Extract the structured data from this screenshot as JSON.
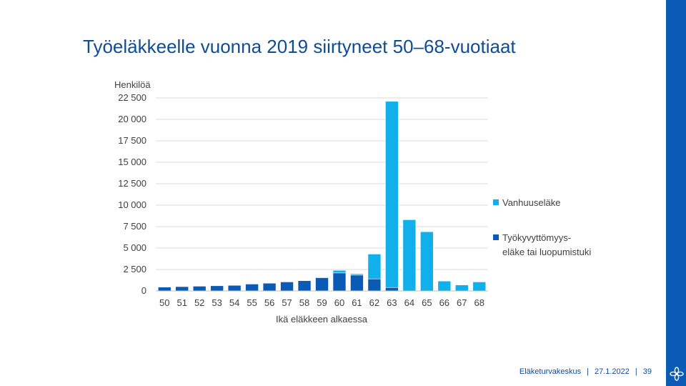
{
  "slide": {
    "title": "Työeläkkeelle vuonna 2019 siirtyneet 50–68-vuotiaat",
    "footer": {
      "org": "Eläketurvakeskus",
      "date": "27.1.2022",
      "page": "39",
      "separator": "|"
    },
    "logo_icon": "flower-logo-icon",
    "colors": {
      "band": "#0a5bb5",
      "title": "#0e4c96"
    }
  },
  "chart_data": {
    "type": "bar",
    "stacked": true,
    "title": "",
    "ylabel": "Henkilöä",
    "xlabel": "Ikä eläkkeen alkaessa",
    "categories": [
      "50",
      "51",
      "52",
      "53",
      "54",
      "55",
      "56",
      "57",
      "58",
      "59",
      "60",
      "61",
      "62",
      "63",
      "64",
      "65",
      "66",
      "67",
      "68"
    ],
    "ylim": [
      0,
      22500
    ],
    "yticks": [
      0,
      2500,
      5000,
      7500,
      10000,
      12500,
      15000,
      17500,
      20000,
      22500
    ],
    "ytick_labels": [
      "0",
      "2 500",
      "5 000",
      "7 500",
      "10 000",
      "12 500",
      "15 000",
      "17 500",
      "20 000",
      "22 500"
    ],
    "grid": true,
    "legend_position": "right",
    "series": [
      {
        "name": "Työkyvyttömyys-eläke tai luopumistuki",
        "legend_lines": [
          "Työkyvyttömyys-",
          "eläke tai luopumistuki"
        ],
        "color": "#0a5bb5",
        "values": [
          450,
          500,
          550,
          600,
          650,
          800,
          900,
          1050,
          1200,
          1550,
          2100,
          1850,
          1400,
          400,
          0,
          0,
          0,
          0,
          0
        ]
      },
      {
        "name": "Vanhuuseläke",
        "legend_lines": [
          "Vanhuuseläke"
        ],
        "color": "#12b0ea",
        "values": [
          0,
          0,
          0,
          0,
          0,
          0,
          0,
          0,
          50,
          50,
          300,
          150,
          2900,
          21700,
          8300,
          6900,
          1150,
          700,
          1050
        ]
      }
    ]
  }
}
